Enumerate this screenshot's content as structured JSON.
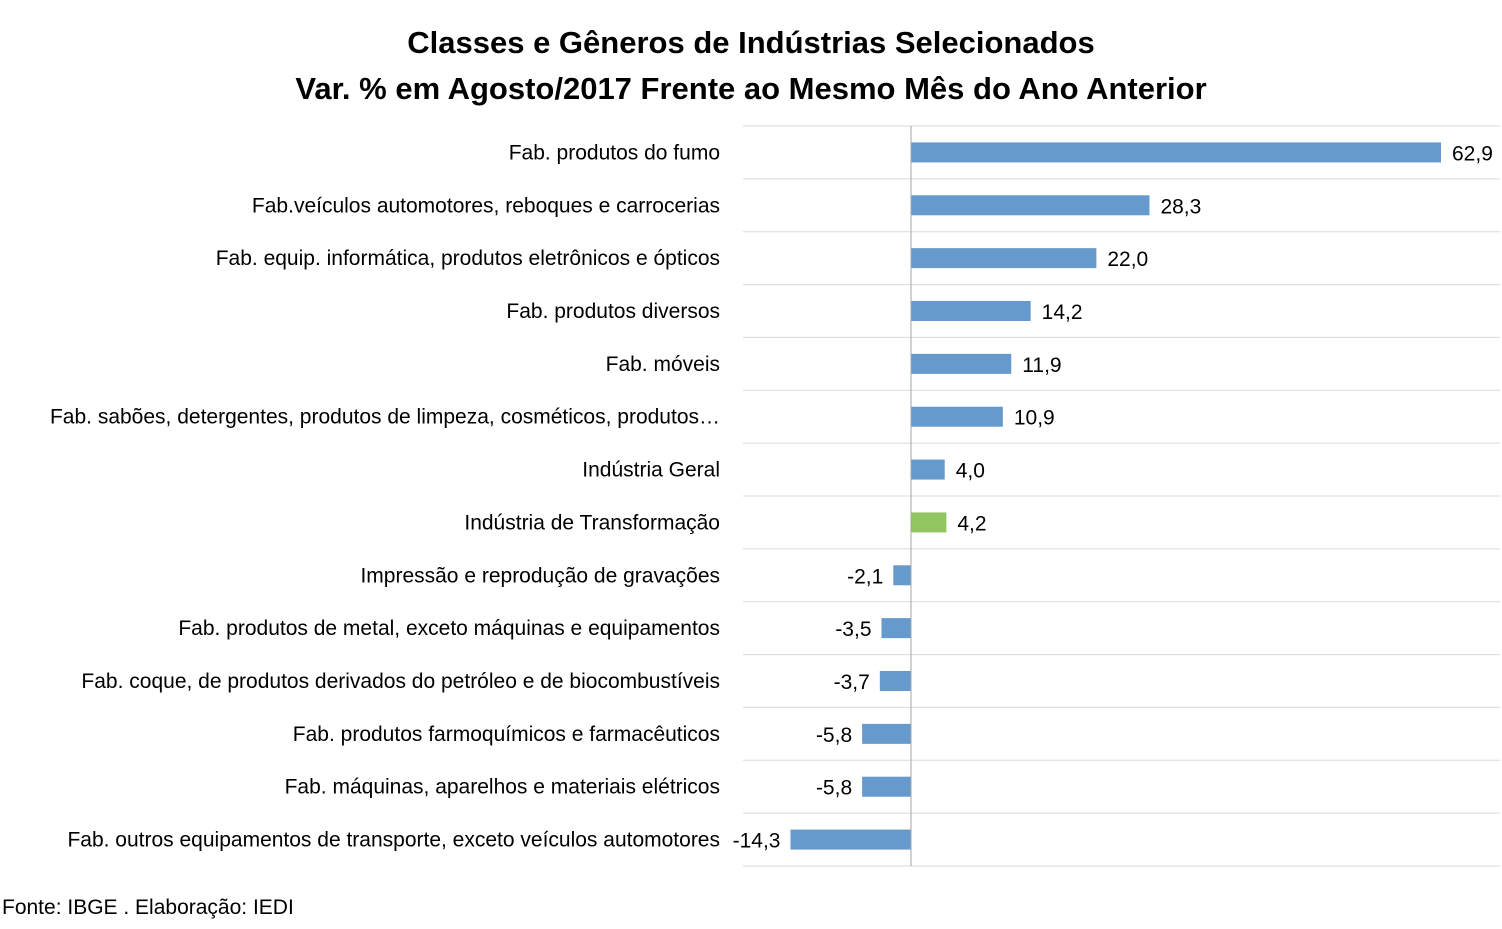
{
  "chart_data": {
    "type": "bar",
    "orientation": "horizontal",
    "title": "Classes e Gêneros de Indústrias Selecionados",
    "subtitle": "Var. % em Agosto/2017 Frente ao Mesmo Mês do Ano Anterior",
    "categories": [
      "Fab. produtos do fumo",
      "Fab.veículos automotores, reboques e carrocerias",
      "Fab. equip. informática, produtos eletrônicos e ópticos",
      "Fab. produtos diversos",
      "Fab. móveis",
      "Fab. sabões, detergentes, produtos de limpeza, cosméticos, produtos…",
      "Indústria Geral",
      "Indústria de Transformação",
      "Impressão e reprodução de gravações",
      "Fab. produtos de metal, exceto máquinas e equipamentos",
      "Fab. coque, de produtos derivados do petróleo e de biocombustíveis",
      "Fab. produtos farmoquímicos e farmacêuticos",
      "Fab. máquinas, aparelhos e materiais elétricos",
      "Fab. outros equipamentos de transporte, exceto veículos automotores"
    ],
    "values": [
      62.9,
      28.3,
      22.0,
      14.2,
      11.9,
      10.9,
      4.0,
      4.2,
      -2.1,
      -3.5,
      -3.7,
      -5.8,
      -5.8,
      -14.3
    ],
    "data_labels": [
      "62,9",
      "28,3",
      "22,0",
      "14,2",
      "11,9",
      "10,9",
      "4,0",
      "4,2",
      "-2,1",
      "-3,5",
      "-3,7",
      "-5,8",
      "-5,8",
      "-14,3"
    ],
    "xlim": [
      -20,
      70
    ],
    "grid": "horizontal",
    "legend": "none",
    "colors": {
      "default_bar": "#6699cc",
      "highlight_bar": "#92c660",
      "grid": "#d9d9d9",
      "axis": "#a6a6a6"
    },
    "highlight_index": 7
  },
  "source": "Fonte: IBGE . Elaboração: IEDI"
}
